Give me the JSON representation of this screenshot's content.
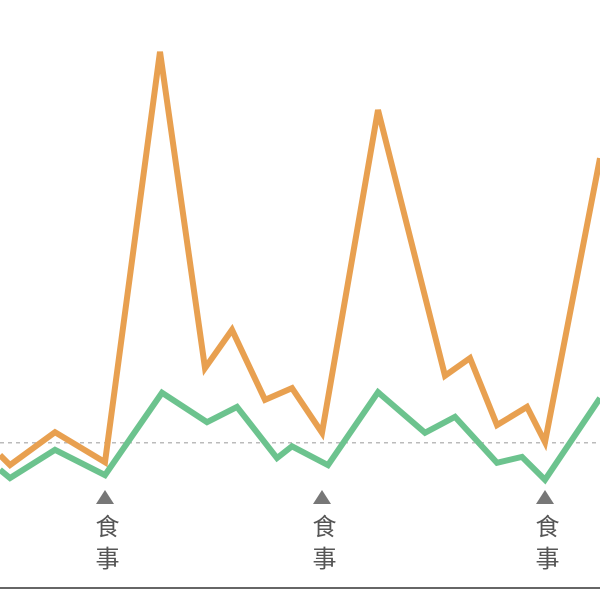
{
  "chart_data": {
    "type": "line",
    "xlim": [
      0,
      600
    ],
    "ylim": [
      0,
      100
    ],
    "series": [
      {
        "color": "#e8a050",
        "x": [
          0,
          10,
          55,
          105,
          160,
          205,
          232,
          265,
          292,
          322,
          378,
          445,
          470,
          497,
          527,
          545,
          600
        ],
        "values": [
          22.6,
          20.9,
          26.5,
          21.4,
          91.2,
          37.4,
          43.9,
          32.0,
          34.0,
          26.4,
          81.3,
          36.1,
          39.1,
          27.7,
          30.8,
          24.8,
          73.1
        ]
      },
      {
        "color": "#6cc38e",
        "x": [
          0,
          10,
          55,
          105,
          162,
          207,
          237,
          277,
          292,
          328,
          378,
          425,
          455,
          497,
          522,
          545,
          600
        ],
        "values": [
          20.1,
          18.7,
          23.5,
          19.2,
          33.2,
          28.2,
          30.8,
          22.1,
          24.1,
          20.9,
          33.3,
          26.4,
          29.1,
          21.3,
          22.3,
          18.4,
          32.3
        ]
      }
    ],
    "reference_line": 24.7,
    "annotations": [
      {
        "x": 105,
        "text": "食事"
      },
      {
        "x": 322,
        "text": "食事"
      },
      {
        "x": 545,
        "text": "食事"
      }
    ]
  }
}
